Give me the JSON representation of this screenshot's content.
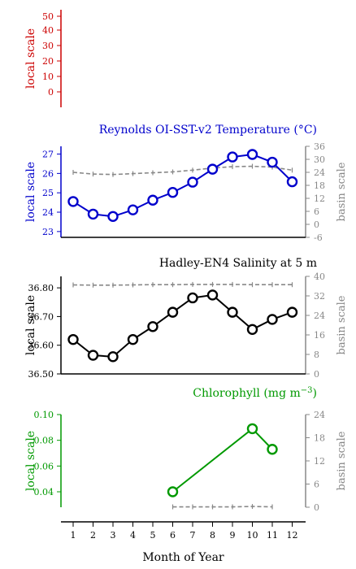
{
  "chart_data": [
    {
      "type": "line",
      "title": "",
      "ylabel": "local scale",
      "color": "#cc0000",
      "ylim": [
        0,
        50
      ],
      "yticks": [
        "0",
        "10",
        "20",
        "30",
        "40",
        "50"
      ],
      "series": []
    },
    {
      "type": "line",
      "title": "Reynolds OI-SST-v2 Temperature (°C)",
      "ylabel": "local scale",
      "ylabel_right": "basin scale",
      "color": "#0000cc",
      "basin_color": "#888888",
      "x": [
        1,
        2,
        3,
        4,
        5,
        6,
        7,
        8,
        9,
        10,
        11,
        12
      ],
      "ylim": [
        22.7,
        27.4
      ],
      "yticks": [
        "23",
        "24",
        "25",
        "26",
        "27"
      ],
      "ylim_right": [
        -6,
        36
      ],
      "yticks_right": [
        "-6",
        "0",
        "6",
        "12",
        "18",
        "24",
        "30",
        "36"
      ],
      "series": [
        {
          "values": [
            24.55,
            23.9,
            23.78,
            24.12,
            24.62,
            25.02,
            25.55,
            26.22,
            26.85,
            26.98,
            26.58,
            25.57
          ]
        }
      ],
      "basin": [
        24.0,
        23.2,
        23.0,
        23.4,
        23.8,
        24.2,
        25.0,
        26.0,
        26.6,
        26.8,
        26.4,
        25.0
      ]
    },
    {
      "type": "line",
      "title": "Hadley-EN4 Salinity at 5 m",
      "ylabel": "local scale",
      "ylabel_right": "basin scale",
      "color": "#000000",
      "basin_color": "#888888",
      "x": [
        1,
        2,
        3,
        4,
        5,
        6,
        7,
        8,
        9,
        10,
        11,
        12
      ],
      "ylim": [
        36.5,
        36.84
      ],
      "yticks": [
        "36.50",
        "36.60",
        "36.70",
        "36.80"
      ],
      "ylim_right": [
        0,
        40
      ],
      "yticks_right": [
        "0",
        "8",
        "16",
        "24",
        "32",
        "40"
      ],
      "series": [
        {
          "values": [
            36.62,
            36.565,
            36.56,
            36.62,
            36.665,
            36.715,
            36.765,
            36.775,
            36.715,
            36.655,
            36.69,
            36.715
          ]
        }
      ],
      "basin": [
        36.5,
        36.4,
        36.4,
        36.5,
        36.6,
        36.6,
        36.7,
        36.7,
        36.7,
        36.6,
        36.6,
        36.6
      ]
    },
    {
      "type": "line",
      "title": "Chlorophyll (mg m",
      "title_sup": "−3",
      "title_end": ")",
      "ylabel": "local scale",
      "ylabel_right": "basin scale",
      "color": "#009900",
      "basin_color": "#888888",
      "xlabel": "Month of Year",
      "xticks": [
        "1",
        "2",
        "3",
        "4",
        "5",
        "6",
        "7",
        "8",
        "9",
        "10",
        "11",
        "12"
      ],
      "ylim": [
        0.028,
        0.1
      ],
      "yticks": [
        "0.04",
        "0.06",
        "0.08",
        "0.10"
      ],
      "ylim_right": [
        0,
        24
      ],
      "yticks_right": [
        "0",
        "6",
        "12",
        "18",
        "24"
      ],
      "series": [
        {
          "x": [
            6,
            10,
            11
          ],
          "values": [
            0.04,
            0.089,
            0.073
          ]
        }
      ],
      "basin": {
        "x": [
          6,
          7,
          8,
          9,
          10,
          11
        ],
        "values": [
          0.1,
          0.1,
          0.1,
          0.1,
          0.2,
          0.1
        ]
      }
    }
  ]
}
